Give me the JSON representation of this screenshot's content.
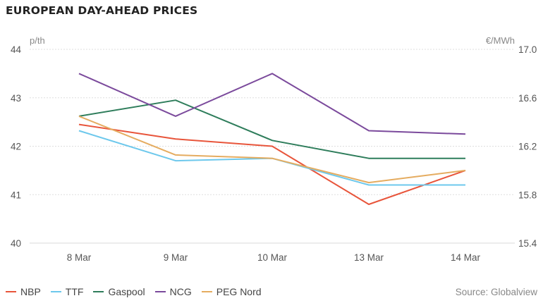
{
  "chart_data": {
    "type": "line",
    "title": "EUROPEAN DAY-AHEAD PRICES",
    "left_unit": "p/th",
    "right_unit": "€/MWh",
    "categories": [
      "8 Mar",
      "9 Mar",
      "10 Mar",
      "13 Mar",
      "14 Mar"
    ],
    "y_left": {
      "min": 40,
      "max": 44,
      "ticks": [
        "40",
        "41",
        "42",
        "43",
        "44"
      ]
    },
    "y_right": {
      "min": 15.4,
      "max": 17.0,
      "ticks": [
        "15.4",
        "15.8",
        "16.2",
        "16.6",
        "17.0"
      ]
    },
    "grid": true,
    "legend_placement": "bottom-left",
    "series": [
      {
        "name": "NBP",
        "color": "#e8553b",
        "values": [
          42.45,
          42.15,
          42.0,
          40.8,
          41.5
        ]
      },
      {
        "name": "TTF",
        "color": "#6dc8ec",
        "values": [
          42.32,
          41.7,
          41.75,
          41.2,
          41.2
        ]
      },
      {
        "name": "Gaspool",
        "color": "#2e7d5b",
        "values": [
          42.62,
          42.95,
          42.12,
          41.75,
          41.75
        ]
      },
      {
        "name": "NCG",
        "color": "#7b4a9c",
        "values": [
          43.5,
          42.62,
          43.5,
          42.32,
          42.25
        ]
      },
      {
        "name": "PEG Nord",
        "color": "#e5ac60",
        "values": [
          42.62,
          41.82,
          41.75,
          41.25,
          41.5
        ]
      }
    ],
    "source": "Source: Globalview"
  }
}
